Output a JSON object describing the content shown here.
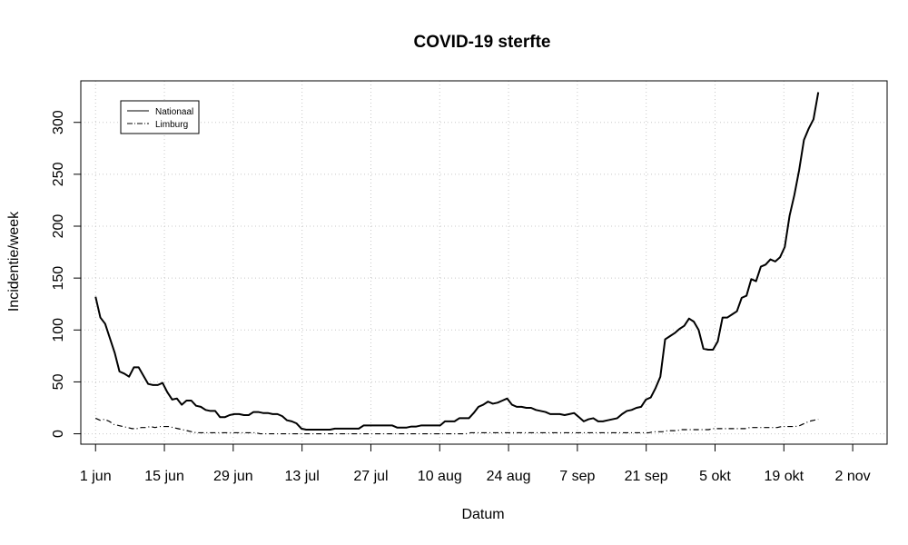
{
  "chart_data": {
    "type": "line",
    "title": "COVID-19 sterfte",
    "xlabel": "Datum",
    "ylabel": "Incidentie/week",
    "x_start": "2020-06-01",
    "x_end": "2020-10-26",
    "xlim": [
      "2020-05-29",
      "2020-11-09"
    ],
    "ylim": [
      -10,
      340
    ],
    "x_ticks": [
      {
        "date": "2020-06-01",
        "label": "1 jun"
      },
      {
        "date": "2020-06-15",
        "label": "15 jun"
      },
      {
        "date": "2020-06-29",
        "label": "29 jun"
      },
      {
        "date": "2020-07-13",
        "label": "13 jul"
      },
      {
        "date": "2020-07-27",
        "label": "27 jul"
      },
      {
        "date": "2020-08-10",
        "label": "10 aug"
      },
      {
        "date": "2020-08-24",
        "label": "24 aug"
      },
      {
        "date": "2020-09-07",
        "label": "7 sep"
      },
      {
        "date": "2020-09-21",
        "label": "21 sep"
      },
      {
        "date": "2020-10-05",
        "label": "5 okt"
      },
      {
        "date": "2020-10-19",
        "label": "19 okt"
      },
      {
        "date": "2020-11-02",
        "label": "2 nov"
      }
    ],
    "y_ticks": [
      0,
      50,
      100,
      150,
      200,
      250,
      300
    ],
    "grid": true,
    "legend_position": "top-left",
    "series": [
      {
        "name": "Nationaal",
        "line_style": "solid",
        "color": "#000000",
        "values": [
          132,
          112,
          106,
          92,
          78,
          60,
          58,
          55,
          64,
          64,
          56,
          48,
          47,
          47,
          49,
          40,
          33,
          34,
          28,
          32,
          32,
          27,
          26,
          23,
          22,
          22,
          16,
          16,
          18,
          19,
          19,
          18,
          18,
          21,
          21,
          20,
          20,
          19,
          19,
          17,
          13,
          12,
          10,
          5,
          4,
          4,
          4,
          4,
          4,
          4,
          5,
          5,
          5,
          5,
          5,
          5,
          8,
          8,
          8,
          8,
          8,
          8,
          8,
          6,
          6,
          6,
          7,
          7,
          8,
          8,
          8,
          8,
          8,
          12,
          12,
          12,
          15,
          15,
          15,
          20,
          26,
          28,
          31,
          29,
          30,
          32,
          34,
          28,
          26,
          26,
          25,
          25,
          23,
          22,
          21,
          19,
          19,
          19,
          18,
          19,
          20,
          16,
          12,
          14,
          15,
          12,
          12,
          13,
          14,
          15,
          19,
          22,
          23,
          25,
          26,
          33,
          35,
          44,
          55,
          91,
          94,
          97,
          101,
          104,
          111,
          108,
          100,
          82,
          81,
          81,
          89,
          112,
          112,
          115,
          118,
          131,
          133,
          149,
          147,
          161,
          163,
          168,
          166,
          170,
          180,
          210,
          230,
          254,
          283,
          294,
          303,
          329
        ]
      },
      {
        "name": "Limburg",
        "line_style": "dashdot",
        "color": "#000000",
        "values": [
          15,
          13,
          14,
          12,
          9,
          8,
          7,
          6,
          5,
          5,
          6,
          6,
          7,
          6,
          7,
          7,
          7,
          6,
          5,
          4,
          3,
          2,
          1,
          1,
          1,
          1,
          1,
          1,
          1,
          1,
          1,
          1,
          1,
          1,
          1,
          1,
          0,
          0,
          0,
          0,
          0,
          0,
          0,
          0,
          0,
          0,
          0,
          0,
          0,
          0,
          0,
          0,
          0,
          0,
          0,
          0,
          0,
          0,
          0,
          0,
          0,
          0,
          0,
          0,
          0,
          0,
          0,
          0,
          0,
          0,
          0,
          0,
          0,
          0,
          0,
          0,
          0,
          0,
          0,
          0,
          0,
          0,
          1,
          1,
          1,
          1,
          1,
          1,
          1,
          1,
          1,
          1,
          1,
          1,
          1,
          1,
          1,
          1,
          1,
          1,
          1,
          1,
          1,
          1,
          1,
          1,
          1,
          1,
          1,
          1,
          1,
          1,
          1,
          1,
          1,
          1,
          1,
          1,
          1,
          1,
          1,
          1,
          2,
          2,
          2,
          3,
          3,
          3,
          4,
          4,
          4,
          4,
          4,
          4,
          4,
          5,
          5,
          5,
          5,
          5,
          5,
          5,
          5,
          6,
          6,
          6,
          6,
          6,
          6,
          6,
          7,
          7,
          7,
          7,
          8,
          10,
          12,
          13,
          14
        ]
      }
    ]
  }
}
